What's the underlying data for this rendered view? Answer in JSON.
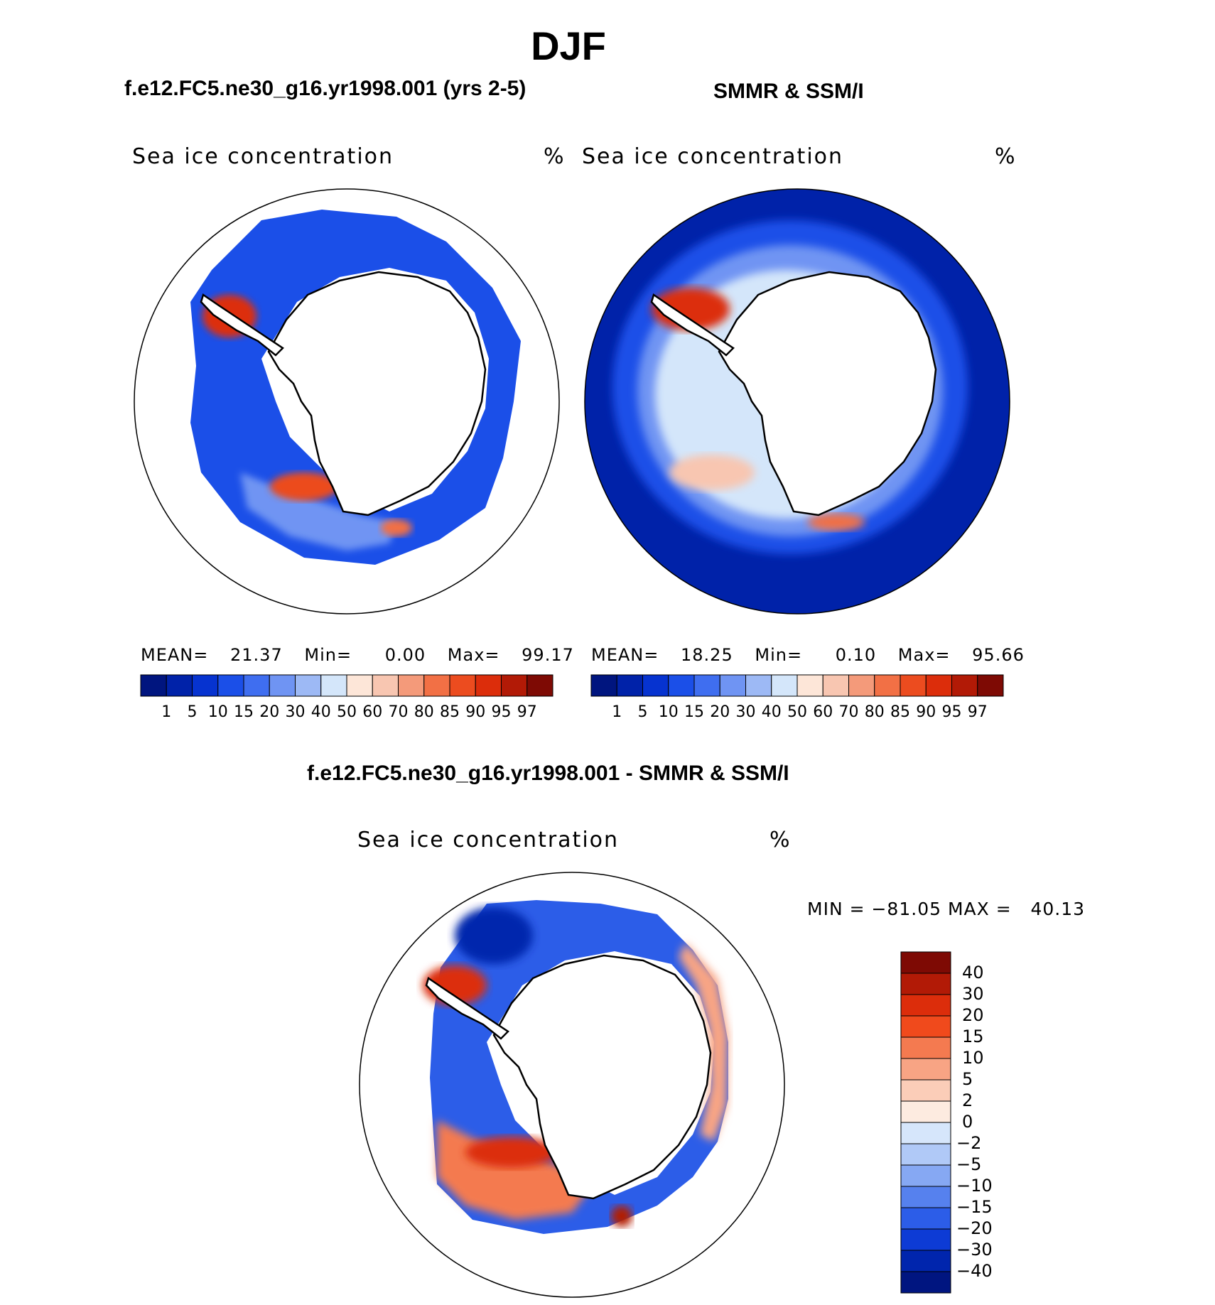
{
  "page": {
    "title": "DJF"
  },
  "panels": {
    "model": {
      "title": "f.e12.FC5.ne30_g16.yr1998.001 (yrs 2-5)",
      "variable": "Sea ice concentration",
      "units": "%",
      "mean_label": "MEAN=",
      "mean_value": "21.37",
      "min_label": "Min=",
      "min_value": "0.00",
      "max_label": "Max=",
      "max_value": "99.17"
    },
    "obs": {
      "title": "SMMR & SSM/I",
      "variable": "Sea ice concentration",
      "units": "%",
      "mean_label": "MEAN=",
      "mean_value": "18.25",
      "min_label": "Min=",
      "min_value": "0.10",
      "max_label": "Max=",
      "max_value": "95.66"
    },
    "diff": {
      "title": "f.e12.FC5.ne30_g16.yr1998.001 - SMMR & SSM/I",
      "variable": "Sea ice concentration",
      "units": "%",
      "minmax_text": "MIN = −81.05 MAX =   40.13"
    }
  },
  "colorbars": {
    "concentration": {
      "levels": [
        "1",
        "5",
        "10",
        "15",
        "20",
        "30",
        "40",
        "50",
        "60",
        "70",
        "80",
        "85",
        "90",
        "95",
        "97"
      ],
      "colors": [
        "#00157f",
        "#0022a9",
        "#0633d0",
        "#1b4fe8",
        "#3f6ef0",
        "#6f94f3",
        "#9db9f5",
        "#d4e6fa",
        "#fde6d8",
        "#f8c6b1",
        "#f49a7a",
        "#f27045",
        "#ec4c1f",
        "#dc2d0b",
        "#b21a06",
        "#7e0a04"
      ]
    },
    "difference": {
      "levels": [
        "40",
        "30",
        "20",
        "15",
        "10",
        "5",
        "2",
        "0",
        "−2",
        "−5",
        "−10",
        "−15",
        "−20",
        "−30",
        "−40"
      ],
      "colors": [
        "#7e0a04",
        "#b21a06",
        "#dc2d0b",
        "#f04a1c",
        "#f47a50",
        "#f8a484",
        "#fbcdb8",
        "#fdebe0",
        "#d6e6fb",
        "#b0c9f7",
        "#86a8f3",
        "#5681ee",
        "#2c5de8",
        "#0d3bd5",
        "#0025ad",
        "#001580"
      ]
    }
  },
  "map": {
    "land_color": "#ffffff",
    "coastline_color": "#000000"
  }
}
